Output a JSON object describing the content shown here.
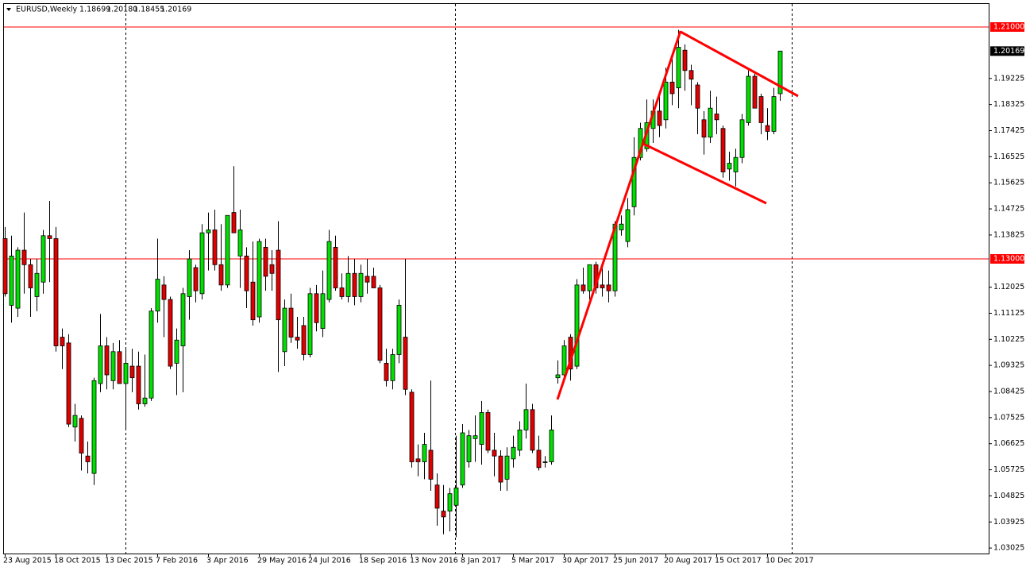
{
  "chart_data": {
    "type": "candlestick",
    "title": "EURUSD,Weekly",
    "ohlc_labels": [
      "1.18699",
      "1.20180",
      "1.18455",
      "1.20169"
    ],
    "categories": [
      "23 Aug 2015",
      null,
      null,
      null,
      null,
      null,
      null,
      null,
      "18 Oct 2015",
      null,
      null,
      null,
      null,
      null,
      null,
      null,
      "13 Dec 2015",
      null,
      null,
      null,
      null,
      null,
      null,
      null,
      "7 Feb 2016",
      null,
      null,
      null,
      null,
      null,
      null,
      null,
      "3 Apr 2016",
      null,
      null,
      null,
      null,
      null,
      null,
      null,
      "29 May 2016",
      null,
      null,
      null,
      null,
      null,
      null,
      null,
      "24 Jul 2016",
      null,
      null,
      null,
      null,
      null,
      null,
      null,
      "18 Sep 2016",
      null,
      null,
      null,
      null,
      null,
      null,
      null,
      "13 Nov 2016",
      null,
      null,
      null,
      null,
      null,
      null,
      null,
      "8 Jan 2017",
      null,
      null,
      null,
      null,
      null,
      null,
      null,
      "5 Mar 2017",
      null,
      null,
      null,
      null,
      null,
      null,
      null,
      "30 Apr 2017",
      null,
      null,
      null,
      null,
      null,
      null,
      null,
      "25 Jun 2017",
      null,
      null,
      null,
      null,
      null,
      null,
      null,
      "20 Aug 2017",
      null,
      null,
      null,
      null,
      null,
      null,
      null,
      "15 Oct 2017",
      null,
      null,
      null,
      null,
      null,
      null,
      null,
      "10 Dec 2017",
      null,
      null
    ],
    "open": [
      1.137,
      1.114,
      1.113,
      1.133,
      1.128,
      1.117,
      1.122,
      1.138,
      1.137,
      1.103,
      1.101,
      1.072,
      1.075,
      1.062,
      1.056,
      1.087,
      1.1,
      1.088,
      1.098,
      1.087,
      1.093,
      1.093,
      1.08,
      1.082,
      1.112,
      1.121,
      1.116,
      1.094,
      1.1,
      1.117,
      1.127,
      1.118,
      1.139,
      1.14,
      1.128,
      1.121,
      1.146,
      1.131,
      1.131,
      1.122,
      1.11,
      1.134,
      1.128,
      1.133,
      1.098,
      1.113,
      1.103,
      1.107,
      1.097,
      1.118,
      1.106,
      1.116,
      1.134,
      1.12,
      1.117,
      1.125,
      1.117,
      1.124,
      1.124,
      1.12,
      1.094,
      1.088,
      1.097,
      1.103,
      1.084,
      1.061,
      1.06,
      1.064,
      1.052,
      1.043,
      1.043,
      1.045,
      1.052,
      1.06,
      1.068,
      1.066,
      1.077,
      1.064,
      1.062,
      1.054,
      1.061,
      1.064,
      1.071,
      1.078,
      1.064,
      1.06,
      1.06,
      1.089,
      1.09,
      1.103,
      1.093,
      1.121,
      1.119,
      1.128,
      1.121,
      1.121,
      1.119,
      1.14,
      1.136,
      1.148,
      1.165,
      1.168,
      1.175,
      1.181,
      1.178,
      1.191,
      1.189,
      1.202,
      1.195,
      1.19,
      1.178,
      1.172,
      1.18,
      1.175,
      1.161,
      1.16,
      1.165,
      1.177,
      1.193,
      1.186,
      1.176,
      1.174,
      1.18699
    ],
    "high": [
      1.141,
      1.138,
      1.134,
      1.146,
      1.13,
      1.13,
      1.14,
      1.15,
      1.141,
      1.106,
      1.104,
      1.08,
      1.076,
      1.067,
      1.089,
      1.111,
      1.103,
      1.101,
      1.102,
      1.099,
      1.099,
      1.098,
      1.097,
      1.113,
      1.137,
      1.124,
      1.117,
      1.106,
      1.12,
      1.133,
      1.128,
      1.142,
      1.146,
      1.147,
      1.142,
      1.145,
      1.162,
      1.147,
      1.134,
      1.136,
      1.137,
      1.137,
      1.133,
      1.143,
      1.116,
      1.118,
      1.11,
      1.11,
      1.12,
      1.121,
      1.126,
      1.14,
      1.138,
      1.125,
      1.131,
      1.13,
      1.128,
      1.13,
      1.127,
      1.121,
      1.099,
      1.099,
      1.116,
      1.13,
      1.085,
      1.066,
      1.07,
      1.088,
      1.056,
      1.052,
      1.051,
      1.069,
      1.073,
      1.071,
      1.076,
      1.081,
      1.078,
      1.07,
      1.064,
      1.065,
      1.069,
      1.074,
      1.087,
      1.08,
      1.069,
      1.062,
      1.076,
      1.095,
      1.102,
      1.104,
      1.123,
      1.127,
      1.128,
      1.129,
      1.128,
      1.126,
      1.143,
      1.145,
      1.151,
      1.172,
      1.177,
      1.185,
      1.185,
      1.186,
      1.196,
      1.2,
      1.209,
      1.204,
      1.197,
      1.191,
      1.181,
      1.188,
      1.186,
      1.176,
      1.167,
      1.168,
      1.18,
      1.195,
      1.194,
      1.187,
      1.182,
      1.189,
      1.2018
    ],
    "low": [
      1.117,
      1.108,
      1.11,
      1.118,
      1.11,
      1.112,
      1.118,
      1.122,
      1.098,
      1.092,
      1.072,
      1.067,
      1.057,
      1.056,
      1.052,
      1.084,
      1.085,
      1.085,
      1.087,
      1.071,
      1.084,
      1.078,
      1.079,
      1.081,
      1.108,
      1.103,
      1.092,
      1.083,
      1.084,
      1.109,
      1.115,
      1.116,
      1.126,
      1.126,
      1.119,
      1.12,
      1.139,
      1.12,
      1.113,
      1.107,
      1.108,
      1.119,
      1.119,
      1.091,
      1.093,
      1.101,
      1.099,
      1.095,
      1.096,
      1.105,
      1.103,
      1.115,
      1.119,
      1.116,
      1.115,
      1.114,
      1.115,
      1.118,
      1.12,
      1.094,
      1.086,
      1.085,
      1.094,
      1.083,
      1.058,
      1.055,
      1.054,
      1.05,
      1.038,
      1.035,
      1.036,
      1.034,
      1.051,
      1.058,
      1.06,
      1.059,
      1.063,
      1.055,
      1.05,
      1.05,
      1.058,
      1.062,
      1.068,
      1.063,
      1.057,
      1.058,
      1.059,
      1.087,
      1.088,
      1.088,
      1.092,
      1.118,
      1.116,
      1.118,
      1.117,
      1.115,
      1.117,
      1.138,
      1.134,
      1.145,
      1.164,
      1.167,
      1.17,
      1.172,
      1.175,
      1.183,
      1.182,
      1.188,
      1.183,
      1.173,
      1.166,
      1.17,
      1.173,
      1.158,
      1.157,
      1.155,
      1.163,
      1.176,
      1.182,
      1.173,
      1.171,
      1.173,
      1.18455
    ],
    "close": [
      1.118,
      1.131,
      1.133,
      1.128,
      1.12,
      1.125,
      1.138,
      1.137,
      1.1,
      1.1,
      1.073,
      1.076,
      1.063,
      1.06,
      1.088,
      1.1,
      1.09,
      1.098,
      1.087,
      1.094,
      1.089,
      1.08,
      1.082,
      1.112,
      1.123,
      1.116,
      1.093,
      1.102,
      1.118,
      1.13,
      1.119,
      1.139,
      1.14,
      1.128,
      1.121,
      1.145,
      1.139,
      1.14,
      1.119,
      1.109,
      1.136,
      1.124,
      1.125,
      1.109,
      1.113,
      1.103,
      1.102,
      1.097,
      1.118,
      1.108,
      1.118,
      1.136,
      1.12,
      1.117,
      1.125,
      1.117,
      1.125,
      1.122,
      1.12,
      1.095,
      1.088,
      1.097,
      1.114,
      1.085,
      1.06,
      1.06,
      1.066,
      1.054,
      1.044,
      1.041,
      1.049,
      1.051,
      1.07,
      1.069,
      1.069,
      1.077,
      1.064,
      1.062,
      1.053,
      1.062,
      1.065,
      1.071,
      1.078,
      1.064,
      1.058,
      1.06,
      1.071,
      1.09,
      1.1,
      1.092,
      1.121,
      1.119,
      1.128,
      1.12,
      1.12,
      1.119,
      1.142,
      1.142,
      1.147,
      1.165,
      1.175,
      1.177,
      1.181,
      1.176,
      1.191,
      1.187,
      1.203,
      1.195,
      1.192,
      1.182,
      1.172,
      1.182,
      1.178,
      1.16,
      1.163,
      1.165,
      1.178,
      1.193,
      1.182,
      1.177,
      1.174,
      1.186,
      1.20169
    ],
    "up_color": "#00e000",
    "down_color": "#e00000",
    "ylim": [
      1.02836,
      1.21822
    ],
    "yticks": [
      1.19225,
      1.18325,
      1.17425,
      1.16525,
      1.15625,
      1.14725,
      1.13825,
      1.12025,
      1.11125,
      1.10225,
      1.09325,
      1.08425,
      1.07525,
      1.06625,
      1.05725,
      1.04825,
      1.03925,
      1.03025
    ],
    "hlines": [
      {
        "value": 1.21,
        "label": "1.21000"
      },
      {
        "value": 1.13,
        "label": "1.13000"
      }
    ],
    "hline_color": "#ff0000",
    "last_price": {
      "value": 1.20169,
      "label": "1.20169"
    },
    "grid": false
  }
}
